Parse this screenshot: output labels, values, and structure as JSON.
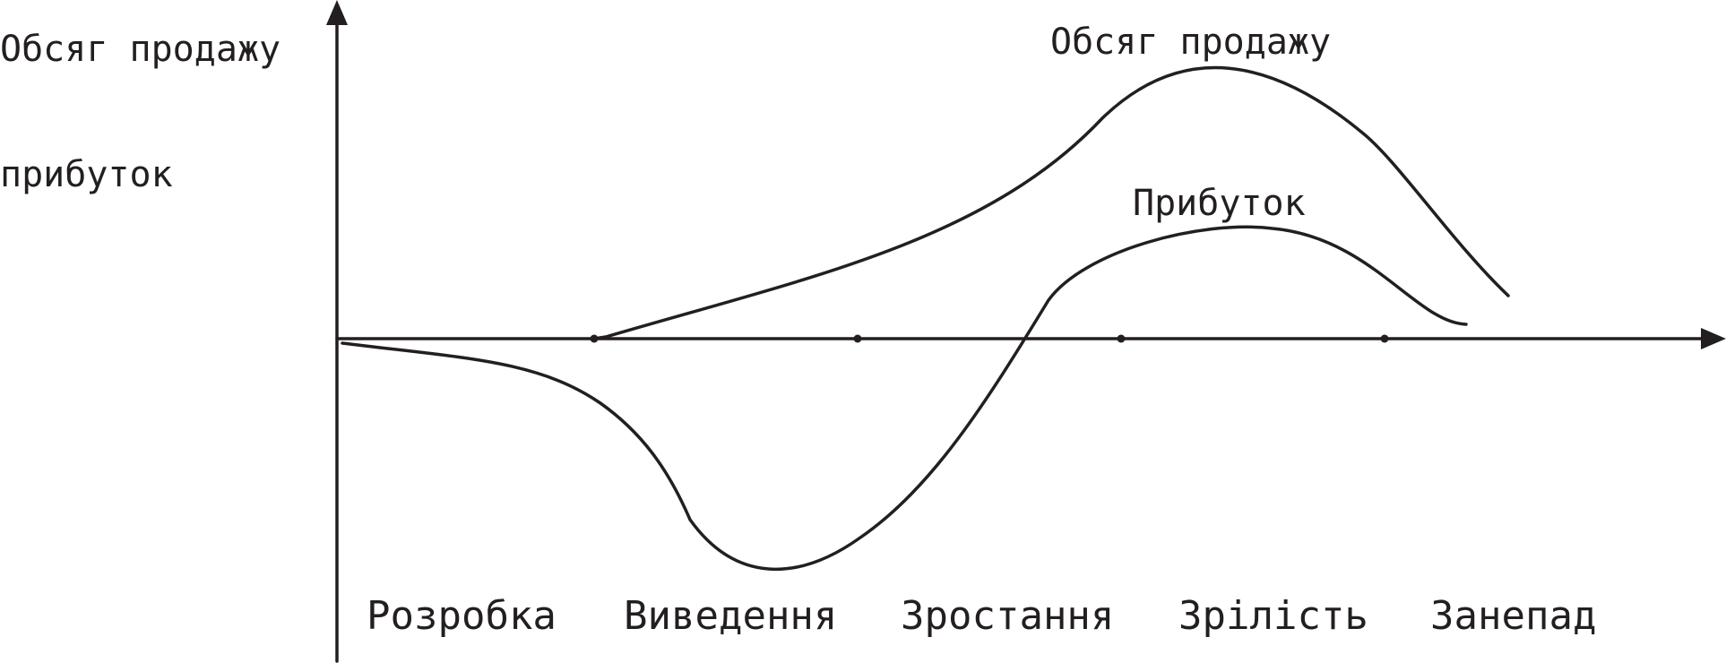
{
  "y_axis_labels": {
    "line1": "Обсяг продажу",
    "line2": "прибуток"
  },
  "curve_labels": {
    "sales": "Обсяг продажу",
    "profit": "Прибуток"
  },
  "stages": [
    "Розробка",
    "Виведення",
    "Зростання",
    "Зрілість",
    "Занепад"
  ],
  "colors": {
    "ink": "#231f20",
    "background": "#ffffff"
  }
}
